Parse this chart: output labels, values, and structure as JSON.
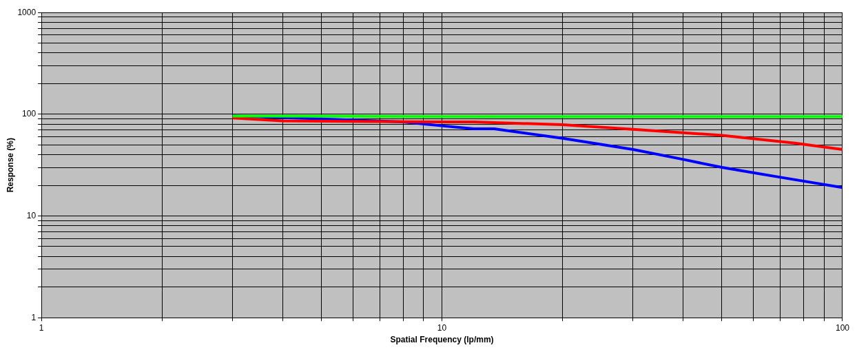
{
  "chart_data": {
    "type": "line",
    "xlabel": "Spatial Frequency (lp/mm)",
    "ylabel": "Response (%)",
    "log": "xy",
    "grid": true,
    "legend": false,
    "marker": "none",
    "line_style": "solid",
    "xlim": [
      1,
      100
    ],
    "ylim": [
      1,
      1000
    ],
    "xticks": [
      1,
      {
        "value": 2,
        "label": null
      },
      {
        "value": 3,
        "label": null
      },
      {
        "value": 4,
        "label": null
      },
      {
        "value": 5,
        "label": null
      },
      {
        "value": 6,
        "label": null
      },
      {
        "value": 7,
        "label": null
      },
      {
        "value": 8,
        "label": null
      },
      {
        "value": 9,
        "label": null
      },
      10,
      {
        "value": 20,
        "label": null
      },
      {
        "value": 30,
        "label": null
      },
      {
        "value": 40,
        "label": null
      },
      {
        "value": 50,
        "label": null
      },
      {
        "value": 60,
        "label": null
      },
      {
        "value": 70,
        "label": null
      },
      {
        "value": 80,
        "label": null
      },
      {
        "value": 90,
        "label": null
      },
      100
    ],
    "yticks": [
      1,
      {
        "value": 2,
        "label": null
      },
      {
        "value": 3,
        "label": null
      },
      {
        "value": 4,
        "label": null
      },
      {
        "value": 5,
        "label": null
      },
      {
        "value": 6,
        "label": null
      },
      {
        "value": 7,
        "label": null
      },
      {
        "value": 8,
        "label": null
      },
      {
        "value": 9,
        "label": null
      },
      10,
      {
        "value": 20,
        "label": null
      },
      {
        "value": 30,
        "label": null
      },
      {
        "value": 40,
        "label": null
      },
      {
        "value": 50,
        "label": null
      },
      {
        "value": 60,
        "label": null
      },
      {
        "value": 70,
        "label": null
      },
      {
        "value": 80,
        "label": null
      },
      {
        "value": 90,
        "label": null
      },
      100,
      {
        "value": 200,
        "label": null
      },
      {
        "value": 300,
        "label": null
      },
      {
        "value": 400,
        "label": null
      },
      {
        "value": 500,
        "label": null
      },
      {
        "value": 600,
        "label": null
      },
      {
        "value": 700,
        "label": null
      },
      {
        "value": 800,
        "label": null
      },
      {
        "value": 900,
        "label": null
      },
      1000
    ],
    "series": [
      {
        "color": "#00ff00",
        "x": [
          3,
          10,
          100
        ],
        "values": [
          96,
          95,
          95
        ]
      },
      {
        "color": "#ff0000",
        "x": [
          3,
          4,
          10,
          12,
          20,
          30,
          50,
          76,
          100
        ],
        "values": [
          92,
          86,
          84,
          84,
          79,
          71,
          62,
          52,
          45
        ]
      },
      {
        "color": "#0000ff",
        "x": [
          3,
          5,
          8,
          10,
          12,
          13.5,
          20,
          30,
          40,
          50,
          70,
          100
        ],
        "values": [
          96,
          90,
          84,
          77,
          72,
          72,
          58,
          45,
          36,
          30,
          24,
          19
        ]
      }
    ]
  }
}
